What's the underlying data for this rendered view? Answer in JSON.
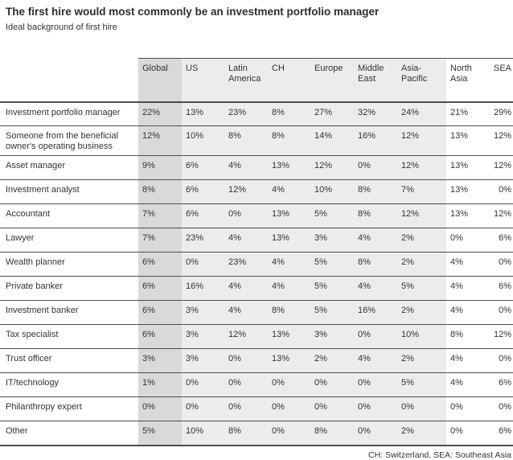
{
  "title": "The first hire would most commonly be an investment portfolio manager",
  "subtitle": "Ideal background of first hire",
  "footnote": "CH: Switzerland, SEA: Southeast Asia",
  "colors": {
    "highlight_column_bg": "#d9d9d9",
    "band_bg": "#ececec",
    "rule_line": "#4d4d4d",
    "text": "#333333"
  },
  "chart_data": {
    "type": "table",
    "title": "The first hire would most commonly be an investment portfolio manager",
    "subtitle": "Ideal background of first hire",
    "columns": [
      "Global",
      "US",
      "Latin America",
      "CH",
      "Europe",
      "Middle East",
      "Asia-Pacific",
      "North Asia",
      "SEA"
    ],
    "highlighted_column": "Global",
    "rows": [
      {
        "label": "Investment portfolio manager",
        "values": [
          "22%",
          "13%",
          "23%",
          "8%",
          "27%",
          "32%",
          "24%",
          "21%",
          "29%"
        ]
      },
      {
        "label": "Someone from the beneficial owner's operating business",
        "values": [
          "12%",
          "10%",
          "8%",
          "8%",
          "14%",
          "16%",
          "12%",
          "13%",
          "12%"
        ]
      },
      {
        "label": "Asset manager",
        "values": [
          "9%",
          "6%",
          "4%",
          "13%",
          "12%",
          "0%",
          "12%",
          "13%",
          "12%"
        ]
      },
      {
        "label": "Investment analyst",
        "values": [
          "8%",
          "6%",
          "12%",
          "4%",
          "10%",
          "8%",
          "7%",
          "13%",
          "0%"
        ]
      },
      {
        "label": "Accountant",
        "values": [
          "7%",
          "6%",
          "0%",
          "13%",
          "5%",
          "8%",
          "12%",
          "13%",
          "12%"
        ]
      },
      {
        "label": "Lawyer",
        "values": [
          "7%",
          "23%",
          "4%",
          "13%",
          "3%",
          "4%",
          "2%",
          "0%",
          "6%"
        ]
      },
      {
        "label": "Wealth planner",
        "values": [
          "6%",
          "0%",
          "23%",
          "4%",
          "5%",
          "8%",
          "2%",
          "4%",
          "0%"
        ]
      },
      {
        "label": "Private banker",
        "values": [
          "6%",
          "16%",
          "4%",
          "4%",
          "5%",
          "4%",
          "5%",
          "4%",
          "6%"
        ]
      },
      {
        "label": "Investment banker",
        "values": [
          "6%",
          "3%",
          "4%",
          "8%",
          "5%",
          "16%",
          "2%",
          "4%",
          "0%"
        ]
      },
      {
        "label": "Tax specialist",
        "values": [
          "6%",
          "3%",
          "12%",
          "13%",
          "3%",
          "0%",
          "10%",
          "8%",
          "12%"
        ]
      },
      {
        "label": "Trust officer",
        "values": [
          "3%",
          "3%",
          "0%",
          "13%",
          "2%",
          "4%",
          "2%",
          "4%",
          "0%"
        ]
      },
      {
        "label": "IT/technology",
        "values": [
          "1%",
          "0%",
          "0%",
          "0%",
          "0%",
          "0%",
          "5%",
          "4%",
          "6%"
        ]
      },
      {
        "label": "Philanthropy expert",
        "values": [
          "0%",
          "0%",
          "0%",
          "0%",
          "0%",
          "0%",
          "0%",
          "0%",
          "0%"
        ]
      },
      {
        "label": "Other",
        "values": [
          "5%",
          "10%",
          "8%",
          "0%",
          "8%",
          "0%",
          "2%",
          "0%",
          "6%"
        ]
      }
    ],
    "footnote": "CH: Switzerland, SEA: Southeast Asia"
  }
}
